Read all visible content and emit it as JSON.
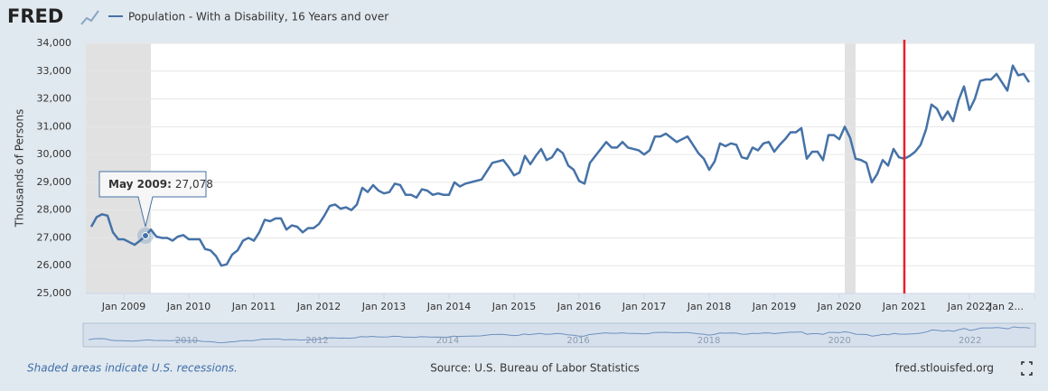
{
  "logo": "FRED",
  "footer": {
    "note": "Shaded areas indicate U.S. recessions.",
    "source": "Source: U.S. Bureau of Labor Statistics",
    "site": "fred.stlouisfed.org"
  },
  "chart_data": {
    "type": "line",
    "ylabel": "Thousands of Persons",
    "x": [
      "2008-07",
      "2008-08",
      "2008-09",
      "2008-10",
      "2008-11",
      "2008-12",
      "2009-01",
      "2009-02",
      "2009-03",
      "2009-04",
      "2009-05",
      "2009-06",
      "2009-07",
      "2009-08",
      "2009-09",
      "2009-10",
      "2009-11",
      "2009-12",
      "2010-01",
      "2010-02",
      "2010-03",
      "2010-04",
      "2010-05",
      "2010-06",
      "2010-07",
      "2010-08",
      "2010-09",
      "2010-10",
      "2010-11",
      "2010-12",
      "2011-01",
      "2011-02",
      "2011-03",
      "2011-04",
      "2011-05",
      "2011-06",
      "2011-07",
      "2011-08",
      "2011-09",
      "2011-10",
      "2011-11",
      "2011-12",
      "2012-01",
      "2012-02",
      "2012-03",
      "2012-04",
      "2012-05",
      "2012-06",
      "2012-07",
      "2012-08",
      "2012-09",
      "2012-10",
      "2012-11",
      "2012-12",
      "2013-01",
      "2013-02",
      "2013-03",
      "2013-04",
      "2013-05",
      "2013-06",
      "2013-07",
      "2013-08",
      "2013-09",
      "2013-10",
      "2013-11",
      "2013-12",
      "2014-01",
      "2014-02",
      "2014-03",
      "2014-04",
      "2014-05",
      "2014-06",
      "2014-07",
      "2014-08",
      "2014-09",
      "2014-10",
      "2014-11",
      "2014-12",
      "2015-01",
      "2015-02",
      "2015-03",
      "2015-04",
      "2015-05",
      "2015-06",
      "2015-07",
      "2015-08",
      "2015-09",
      "2015-10",
      "2015-11",
      "2015-12",
      "2016-01",
      "2016-02",
      "2016-03",
      "2016-04",
      "2016-05",
      "2016-06",
      "2016-07",
      "2016-08",
      "2016-09",
      "2016-10",
      "2016-11",
      "2016-12",
      "2017-01",
      "2017-02",
      "2017-03",
      "2017-04",
      "2017-05",
      "2017-06",
      "2017-07",
      "2017-08",
      "2017-09",
      "2017-10",
      "2017-11",
      "2017-12",
      "2018-01",
      "2018-02",
      "2018-03",
      "2018-04",
      "2018-05",
      "2018-06",
      "2018-07",
      "2018-08",
      "2018-09",
      "2018-10",
      "2018-11",
      "2018-12",
      "2019-01",
      "2019-02",
      "2019-03",
      "2019-04",
      "2019-05",
      "2019-06",
      "2019-07",
      "2019-08",
      "2019-09",
      "2019-10",
      "2019-11",
      "2019-12",
      "2020-01",
      "2020-02",
      "2020-03",
      "2020-04",
      "2020-05",
      "2020-06",
      "2020-07",
      "2020-08",
      "2020-09",
      "2020-10",
      "2020-11",
      "2020-12",
      "2021-01",
      "2021-02",
      "2021-03",
      "2021-04",
      "2021-05",
      "2021-06",
      "2021-07",
      "2021-08",
      "2021-09",
      "2021-10",
      "2021-11",
      "2021-12",
      "2022-01",
      "2022-02",
      "2022-03",
      "2022-04",
      "2022-05",
      "2022-06",
      "2022-07",
      "2022-08",
      "2022-09",
      "2022-10",
      "2022-11",
      "2022-12"
    ],
    "series": [
      {
        "name": "Population - With a Disability, 16 Years and over",
        "color": "#4572a7",
        "values": [
          27400,
          27750,
          27850,
          27800,
          27200,
          26950,
          26950,
          26850,
          26750,
          26900,
          27078,
          27300,
          27050,
          27000,
          27000,
          26900,
          27050,
          27100,
          26950,
          26950,
          26950,
          26600,
          26550,
          26350,
          26000,
          26050,
          26400,
          26550,
          26900,
          27000,
          26900,
          27200,
          27650,
          27600,
          27700,
          27700,
          27300,
          27450,
          27400,
          27200,
          27350,
          27350,
          27500,
          27800,
          28150,
          28200,
          28050,
          28100,
          28000,
          28200,
          28800,
          28650,
          28900,
          28700,
          28600,
          28650,
          28950,
          28900,
          28550,
          28550,
          28450,
          28750,
          28700,
          28550,
          28600,
          28550,
          28550,
          29000,
          28850,
          28950,
          29000,
          29050,
          29100,
          29400,
          29700,
          29750,
          29800,
          29550,
          29250,
          29350,
          29950,
          29650,
          29950,
          30200,
          29800,
          29900,
          30200,
          30050,
          29600,
          29450,
          29050,
          28950,
          29700,
          29950,
          30200,
          30450,
          30250,
          30250,
          30450,
          30250,
          30200,
          30150,
          30000,
          30150,
          30650,
          30650,
          30750,
          30600,
          30450,
          30550,
          30650,
          30350,
          30050,
          29850,
          29450,
          29750,
          30400,
          30300,
          30400,
          30350,
          29900,
          29850,
          30250,
          30150,
          30400,
          30450,
          30100,
          30350,
          30550,
          30800,
          30800,
          30950,
          29850,
          30100,
          30100,
          29800,
          30700,
          30700,
          30550,
          31000,
          30600,
          29850,
          29800,
          29700,
          29000,
          29300,
          29800,
          29600,
          30200,
          29900,
          29850,
          29950,
          30100,
          30350,
          30900,
          31800,
          31650,
          31250,
          31550,
          31200,
          31950,
          32450,
          31600,
          32000,
          32650,
          32700,
          32700,
          32900,
          32600,
          32300,
          33200,
          32850,
          32900,
          32600
        ]
      }
    ],
    "xlim": [
      "2008-06",
      "2023-01"
    ],
    "xticks": [
      {
        "value": "2009-01",
        "label": "Jan 2009"
      },
      {
        "value": "2010-01",
        "label": "Jan 2010"
      },
      {
        "value": "2011-01",
        "label": "Jan 2011"
      },
      {
        "value": "2012-01",
        "label": "Jan 2012"
      },
      {
        "value": "2013-01",
        "label": "Jan 2013"
      },
      {
        "value": "2014-01",
        "label": "Jan 2014"
      },
      {
        "value": "2015-01",
        "label": "Jan 2015"
      },
      {
        "value": "2016-01",
        "label": "Jan 2016"
      },
      {
        "value": "2017-01",
        "label": "Jan 2017"
      },
      {
        "value": "2018-01",
        "label": "Jan 2018"
      },
      {
        "value": "2019-01",
        "label": "Jan 2019"
      },
      {
        "value": "2020-01",
        "label": "Jan 2020"
      },
      {
        "value": "2021-01",
        "label": "Jan 2021"
      },
      {
        "value": "2022-01",
        "label": "Jan 2022"
      },
      {
        "value": "2023-01",
        "label": "Jan 2..."
      }
    ],
    "ylim": [
      25000,
      34000
    ],
    "yticks": [
      {
        "value": 25000,
        "label": "25,000"
      },
      {
        "value": 26000,
        "label": "26,000"
      },
      {
        "value": 27000,
        "label": "27,000"
      },
      {
        "value": 28000,
        "label": "28,000"
      },
      {
        "value": 29000,
        "label": "29,000"
      },
      {
        "value": 30000,
        "label": "30,000"
      },
      {
        "value": 31000,
        "label": "31,000"
      },
      {
        "value": 32000,
        "label": "32,000"
      },
      {
        "value": 33000,
        "label": "33,000"
      },
      {
        "value": 34000,
        "label": "34,000"
      }
    ],
    "grid": true,
    "recessions": [
      {
        "start": "2008-06",
        "end": "2009-06"
      },
      {
        "start": "2020-02",
        "end": "2020-04"
      }
    ],
    "vline": {
      "x": "2021-01",
      "color": "#e8202a"
    },
    "tooltip": {
      "x": "2009-05",
      "label": "May 2009:",
      "value": 27078,
      "value_label": "27,078"
    },
    "navigator_ticks": [
      {
        "value": "2010-01",
        "label": "2010"
      },
      {
        "value": "2012-01",
        "label": "2012"
      },
      {
        "value": "2014-01",
        "label": "2014"
      },
      {
        "value": "2016-01",
        "label": "2016"
      },
      {
        "value": "2018-01",
        "label": "2018"
      },
      {
        "value": "2020-01",
        "label": "2020"
      },
      {
        "value": "2022-01",
        "label": "2022"
      }
    ]
  }
}
